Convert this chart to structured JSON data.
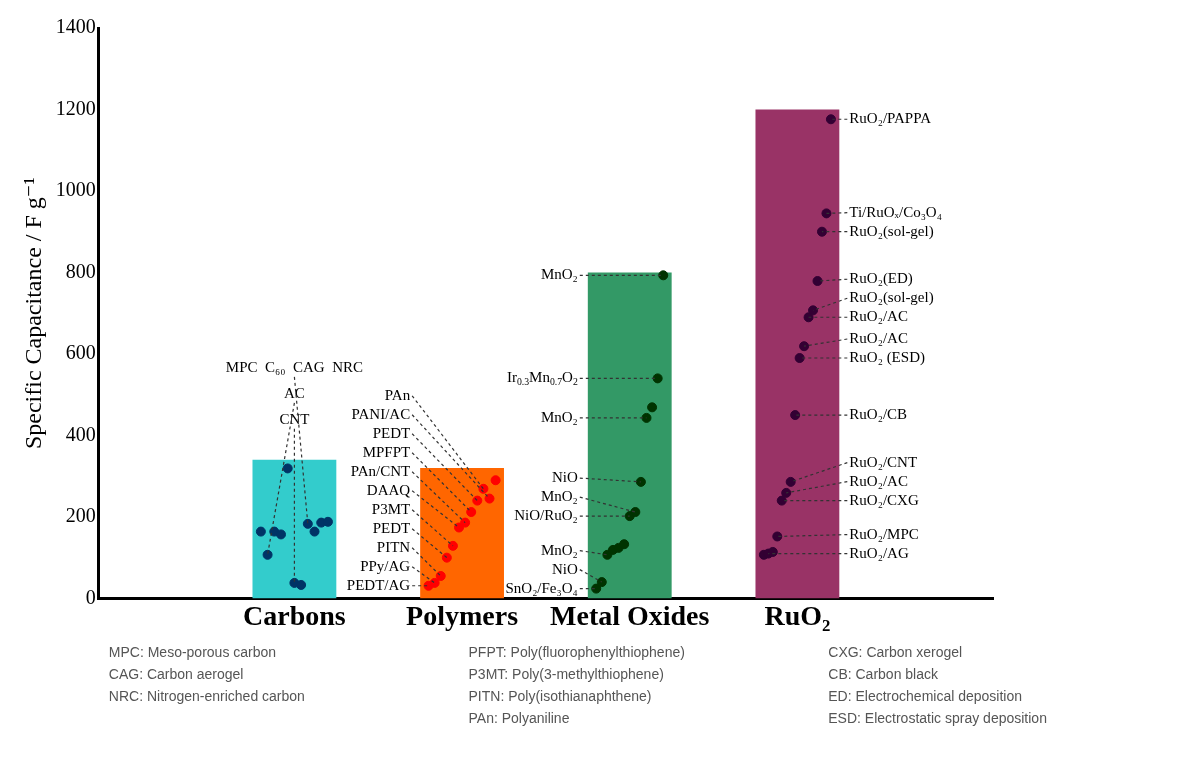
{
  "chart_data": {
    "type": "bar",
    "ylabel": "Specific Capacitance / F g⁻¹",
    "categories": [
      "Carbons",
      "Polymers",
      "Metal Oxides",
      "RuO₂"
    ],
    "ylim": [
      0,
      1400
    ],
    "yticks": [
      0,
      200,
      400,
      600,
      800,
      1000,
      1200,
      1400
    ],
    "series": [
      {
        "colors": [
          "#33cccc",
          "#ff6600",
          "#339966",
          "#993366"
        ],
        "values": [
          340,
          320,
          800,
          1200
        ]
      },
      {
        "type": "scatter",
        "color": "#003366",
        "x": [
          "Carbons",
          "Carbons",
          "Carbons",
          "Carbons",
          "Carbons",
          "Carbons",
          "Carbons",
          "Carbons",
          "Carbons",
          "Carbons",
          "Carbons"
        ],
        "values": [
          164,
          107,
          164,
          157,
          319,
          38,
          33,
          183,
          164,
          186,
          188
        ],
        "value_labels": [
          null,
          "AC",
          null,
          null,
          null,
          "CNT",
          null,
          "MPC  C₆₀  CAG  NRC",
          null,
          null,
          null
        ]
      },
      {
        "type": "scatter",
        "color": "#ff0000",
        "x": [
          "Polymers",
          "Polymers",
          "Polymers",
          "Polymers",
          "Polymers",
          "Polymers",
          "Polymers",
          "Polymers",
          "Polymers",
          "Polymers",
          "Polymers",
          "Polymers"
        ],
        "values": [
          31,
          38,
          55,
          100,
          129,
          174,
          186,
          212,
          240,
          269,
          245,
          290
        ],
        "value_labels": [
          "PEDT/AG",
          "PPy/AG",
          "PITN",
          "PEDT",
          "P3MT",
          "DAAQ",
          "PAn/CNT",
          "MPFPT",
          "PEDT",
          "PAn",
          "PANI/AC",
          null
        ]
      },
      {
        "type": "scatter",
        "color": "#003300",
        "x": [
          "Metal Oxides",
          "Metal Oxides",
          "Metal Oxides",
          "Metal Oxides",
          "Metal Oxides",
          "Metal Oxides",
          "Metal Oxides",
          "Metal Oxides",
          "Metal Oxides",
          "Metal Oxides",
          "Metal Oxides",
          "Metal Oxides",
          "Metal Oxides"
        ],
        "values": [
          24,
          40,
          107,
          119,
          124,
          133,
          202,
          212,
          286,
          443,
          469,
          540,
          793
        ],
        "value_labels": [
          "SnO₂/Fe₃O₄",
          "NiO",
          "MnO₂",
          null,
          null,
          null,
          "NiO/RuO₂",
          "MnO₂",
          "NiO",
          "MnO₂",
          null,
          "Ir$_{0.3}$Mn$_{0.7}$O$_{2}$",
          "MnO₂"
        ]
      },
      {
        "type": "scatter",
        "color": "#330033",
        "x": [
          "RuO₂",
          "RuO₂",
          "RuO₂",
          "RuO₂",
          "RuO₂",
          "RuO₂",
          "RuO₂",
          "RuO₂",
          "RuO₂",
          "RuO₂",
          "RuO₂",
          "RuO₂",
          "RuO₂",
          "RuO₂",
          "RuO₂",
          "RuO₂"
        ],
        "values": [
          107,
          110,
          114,
          152,
          240,
          259,
          286,
          450,
          590,
          619,
          690,
          707,
          779,
          900,
          945,
          1176
        ],
        "value_labels": [
          null,
          "RuO₂/AG",
          null,
          "RuO₂/MPC",
          "RuO₂/CXG",
          "RuO₂/AC",
          "RuO₂/CNT",
          "RuO₂/CB",
          "RuO₂ (ESD)",
          "RuO₂/AC",
          "RuO₂/AC",
          "RuO₂(sol-gel)",
          "RuO₂(ED)",
          "RuO₂(sol-gel)",
          "Ti/RuOₓ/Co₃O₄",
          "RuO₂/PAPPA"
        ]
      }
    ],
    "annotations": [
      "MPC: Meso-porous carbon\nCAG: Carbon aerogel\nNRC: Nitrogen-enriched carbon",
      "PFPT: Poly(fluorophenylthiophene)\nP3MT: Poly(3-methylthiophene)\nPITN: Poly(isothianaphthene)\nPAn: Polyaniline",
      "CXG: Carbon xerogel\nCB: Carbon black\nED: Electrochemical deposition\nESD: Electrostatic spray deposition"
    ]
  }
}
